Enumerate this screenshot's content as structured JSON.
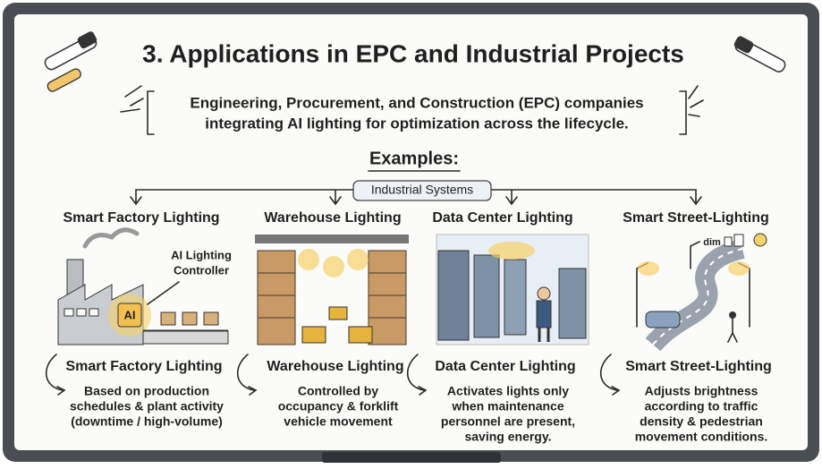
{
  "title": "3. Applications in EPC and Industrial Projects",
  "intro": [
    "Engineering, Procurement, and Construction (EPC) companies",
    "integrating AI lighting for optimization across the lifecycle."
  ],
  "examples_heading": "Examples:",
  "hub": "Industrial Systems",
  "columns": [
    {
      "heading": "Smart Factory Lighting",
      "illustration_labels": [
        "AI Lighting",
        "Controller",
        "AI"
      ],
      "caption": "Smart Factory Lighting",
      "description": [
        "Based on production",
        "schedules & plant activity",
        "(downtime / high-volume)"
      ]
    },
    {
      "heading": "Warehouse Lighting",
      "illustration_labels": [],
      "caption": "Warehouse Lighting",
      "description": [
        "Controlled by",
        "occupancy & forklift",
        "vehicle movement"
      ]
    },
    {
      "heading": "Data Center Lighting",
      "illustration_labels": [],
      "caption": "Data Center Lighting",
      "description": [
        "Activates lights only",
        "when maintenance",
        "personnel are present,",
        "saving energy."
      ]
    },
    {
      "heading": "Smart Street-Lighting",
      "illustration_labels": [
        "dim"
      ],
      "caption": "Smart Street-Lighting",
      "description": [
        "Adjusts brightness",
        "according to traffic",
        "density & pedestrian",
        "movement conditions."
      ]
    }
  ]
}
